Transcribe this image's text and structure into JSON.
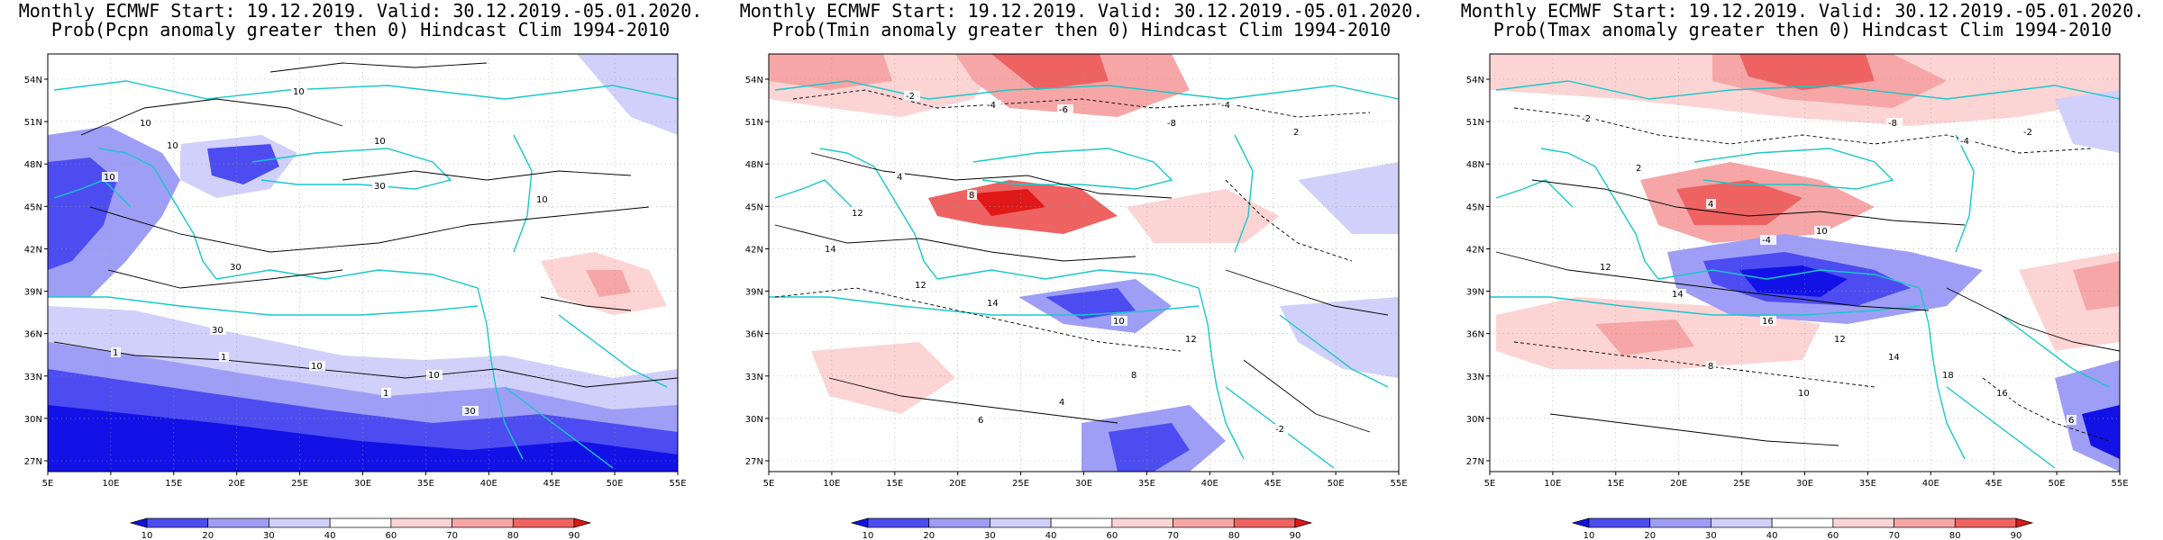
{
  "palette": {
    "blue_dark": "#1212e6",
    "blue_mid": "#4c4cf0",
    "blue_light": "#9e9ef6",
    "blue_pale": "#d0d0fa",
    "white": "#ffffff",
    "red_pale": "#fcd4d4",
    "red_light": "#f6a6a6",
    "red_mid": "#ee6262",
    "red_dark": "#e01818",
    "coast": "#18c8c8",
    "contour": "#000000"
  },
  "axes": {
    "lat_labels": [
      "54N",
      "51N",
      "48N",
      "45N",
      "42N",
      "39N",
      "36N",
      "33N",
      "30N",
      "27N"
    ],
    "lon_labels": [
      "5E",
      "10E",
      "15E",
      "20E",
      "25E",
      "30E",
      "35E",
      "40E",
      "45E",
      "50E",
      "55E"
    ]
  },
  "colorbar": {
    "labels": [
      "10",
      "20",
      "30",
      "40",
      "60",
      "70",
      "80",
      "90"
    ]
  },
  "panels": [
    {
      "title_line1": "Monthly ECMWF Start: 19.12.2019. Valid: 30.12.2019.-05.01.2020.",
      "title_line2": "Prob(Pcpn anomaly greater then 0) Hindcast Clim 1994-2010",
      "contour_labels": [
        "10",
        "10",
        "10",
        "10",
        "30",
        "30",
        "10",
        "10",
        "30",
        "1",
        "1",
        "10",
        "10",
        "1",
        "30"
      ]
    },
    {
      "title_line1": "Monthly ECMWF Start: 19.12.2019. Valid: 30.12.2019.-05.01.2020.",
      "title_line2": "Prob(Tmin anomaly greater then 0) Hindcast Clim 1994-2010",
      "contour_labels": [
        "-2",
        "-4",
        "-6",
        "-8",
        "-4",
        "2",
        "4",
        "8",
        "12",
        "14",
        "12",
        "14",
        "10",
        "12",
        "8",
        "4",
        "6",
        "-2"
      ]
    },
    {
      "title_line1": "Monthly ECMWF Start: 19.12.2019. Valid: 30.12.2019.-05.01.2020.",
      "title_line2": "Prob(Tmax anomaly greater then 0) Hindcast Clim 1994-2010",
      "contour_labels": [
        "-2",
        "-8",
        "-4",
        "-2",
        "2",
        "4",
        "10",
        "12",
        "14",
        "16",
        "12",
        "14",
        "18",
        "16",
        "8",
        "10",
        "-4",
        "6"
      ]
    }
  ]
}
